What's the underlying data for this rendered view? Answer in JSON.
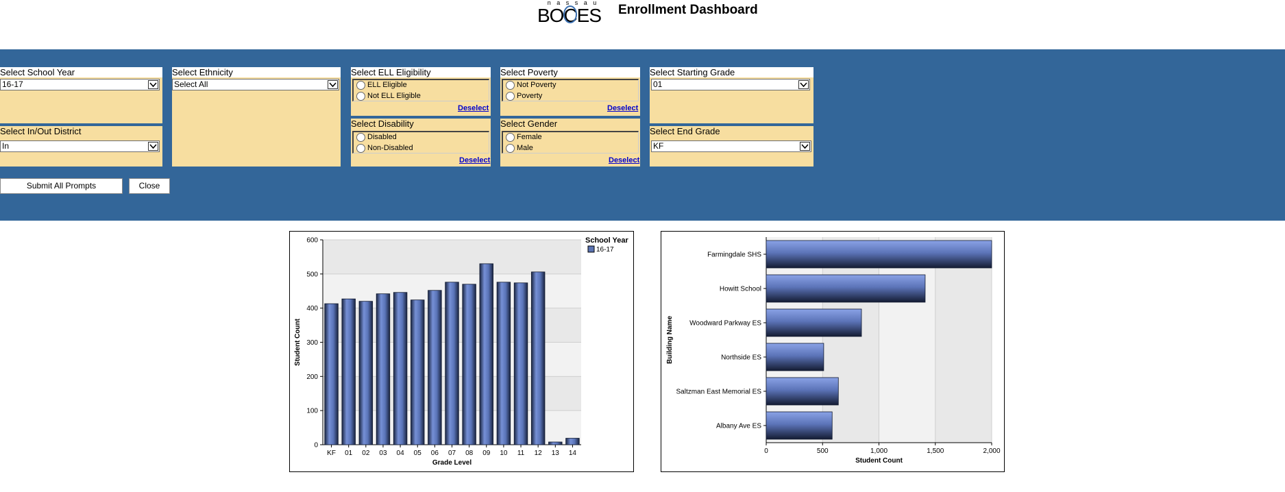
{
  "header": {
    "logo_top": "n a s s a u",
    "logo_main": "BOCES",
    "title": "Enrollment Dashboard"
  },
  "prompts": {
    "school_year": {
      "label": "Select School Year",
      "value": "16-17"
    },
    "in_out_district": {
      "label": "Select In/Out District",
      "value": "In"
    },
    "ethnicity": {
      "label": "Select Ethnicity",
      "value": "Select All"
    },
    "ell": {
      "label": "Select ELL Eligibility",
      "options": [
        "ELL Eligible",
        "Not ELL Eligible"
      ],
      "deselect": "Deselect"
    },
    "disability": {
      "label": "Select Disability",
      "options": [
        "Disabled",
        "Non-Disabled"
      ],
      "deselect": "Deselect"
    },
    "poverty": {
      "label": "Select Poverty",
      "options": [
        "Not Poverty",
        "Poverty"
      ],
      "deselect": "Deselect"
    },
    "gender": {
      "label": "Select Gender",
      "options": [
        "Female",
        "Male"
      ],
      "deselect": "Deselect"
    },
    "start_grade": {
      "label": "Select Starting Grade",
      "value": "01"
    },
    "end_grade": {
      "label": "Select End Grade",
      "value": "KF"
    }
  },
  "buttons": {
    "submit": "Submit All Prompts",
    "close": "Close"
  },
  "chart_data": [
    {
      "type": "bar",
      "categories": [
        "KF",
        "01",
        "02",
        "03",
        "04",
        "05",
        "06",
        "07",
        "08",
        "09",
        "10",
        "11",
        "12",
        "13",
        "14"
      ],
      "series": [
        {
          "name": "16-17",
          "values": [
            413,
            427,
            420,
            442,
            446,
            424,
            452,
            476,
            470,
            530,
            476,
            474,
            506,
            8,
            19
          ]
        }
      ],
      "xlabel": "Grade Level",
      "ylabel": "Student Count",
      "ylim": [
        0,
        600
      ],
      "yticks": [
        0,
        100,
        200,
        300,
        400,
        500,
        600
      ],
      "legend_title": "School Year",
      "legend": "top-right",
      "color": "#5b74b3"
    },
    {
      "type": "bar",
      "orientation": "horizontal",
      "categories": [
        "Farmingdale SHS",
        "Howitt School",
        "Woodward Parkway ES",
        "Northside ES",
        "Saltzman East Memorial ES",
        "Albany Ave ES"
      ],
      "values": [
        2000,
        1410,
        845,
        510,
        640,
        585
      ],
      "xlabel": "Student Count",
      "ylabel": "Building Name",
      "xlim": [
        0,
        2000
      ],
      "xticks": [
        "0",
        "500",
        "1,000",
        "1,500",
        "2,000"
      ],
      "color": "#6f88cc"
    }
  ]
}
